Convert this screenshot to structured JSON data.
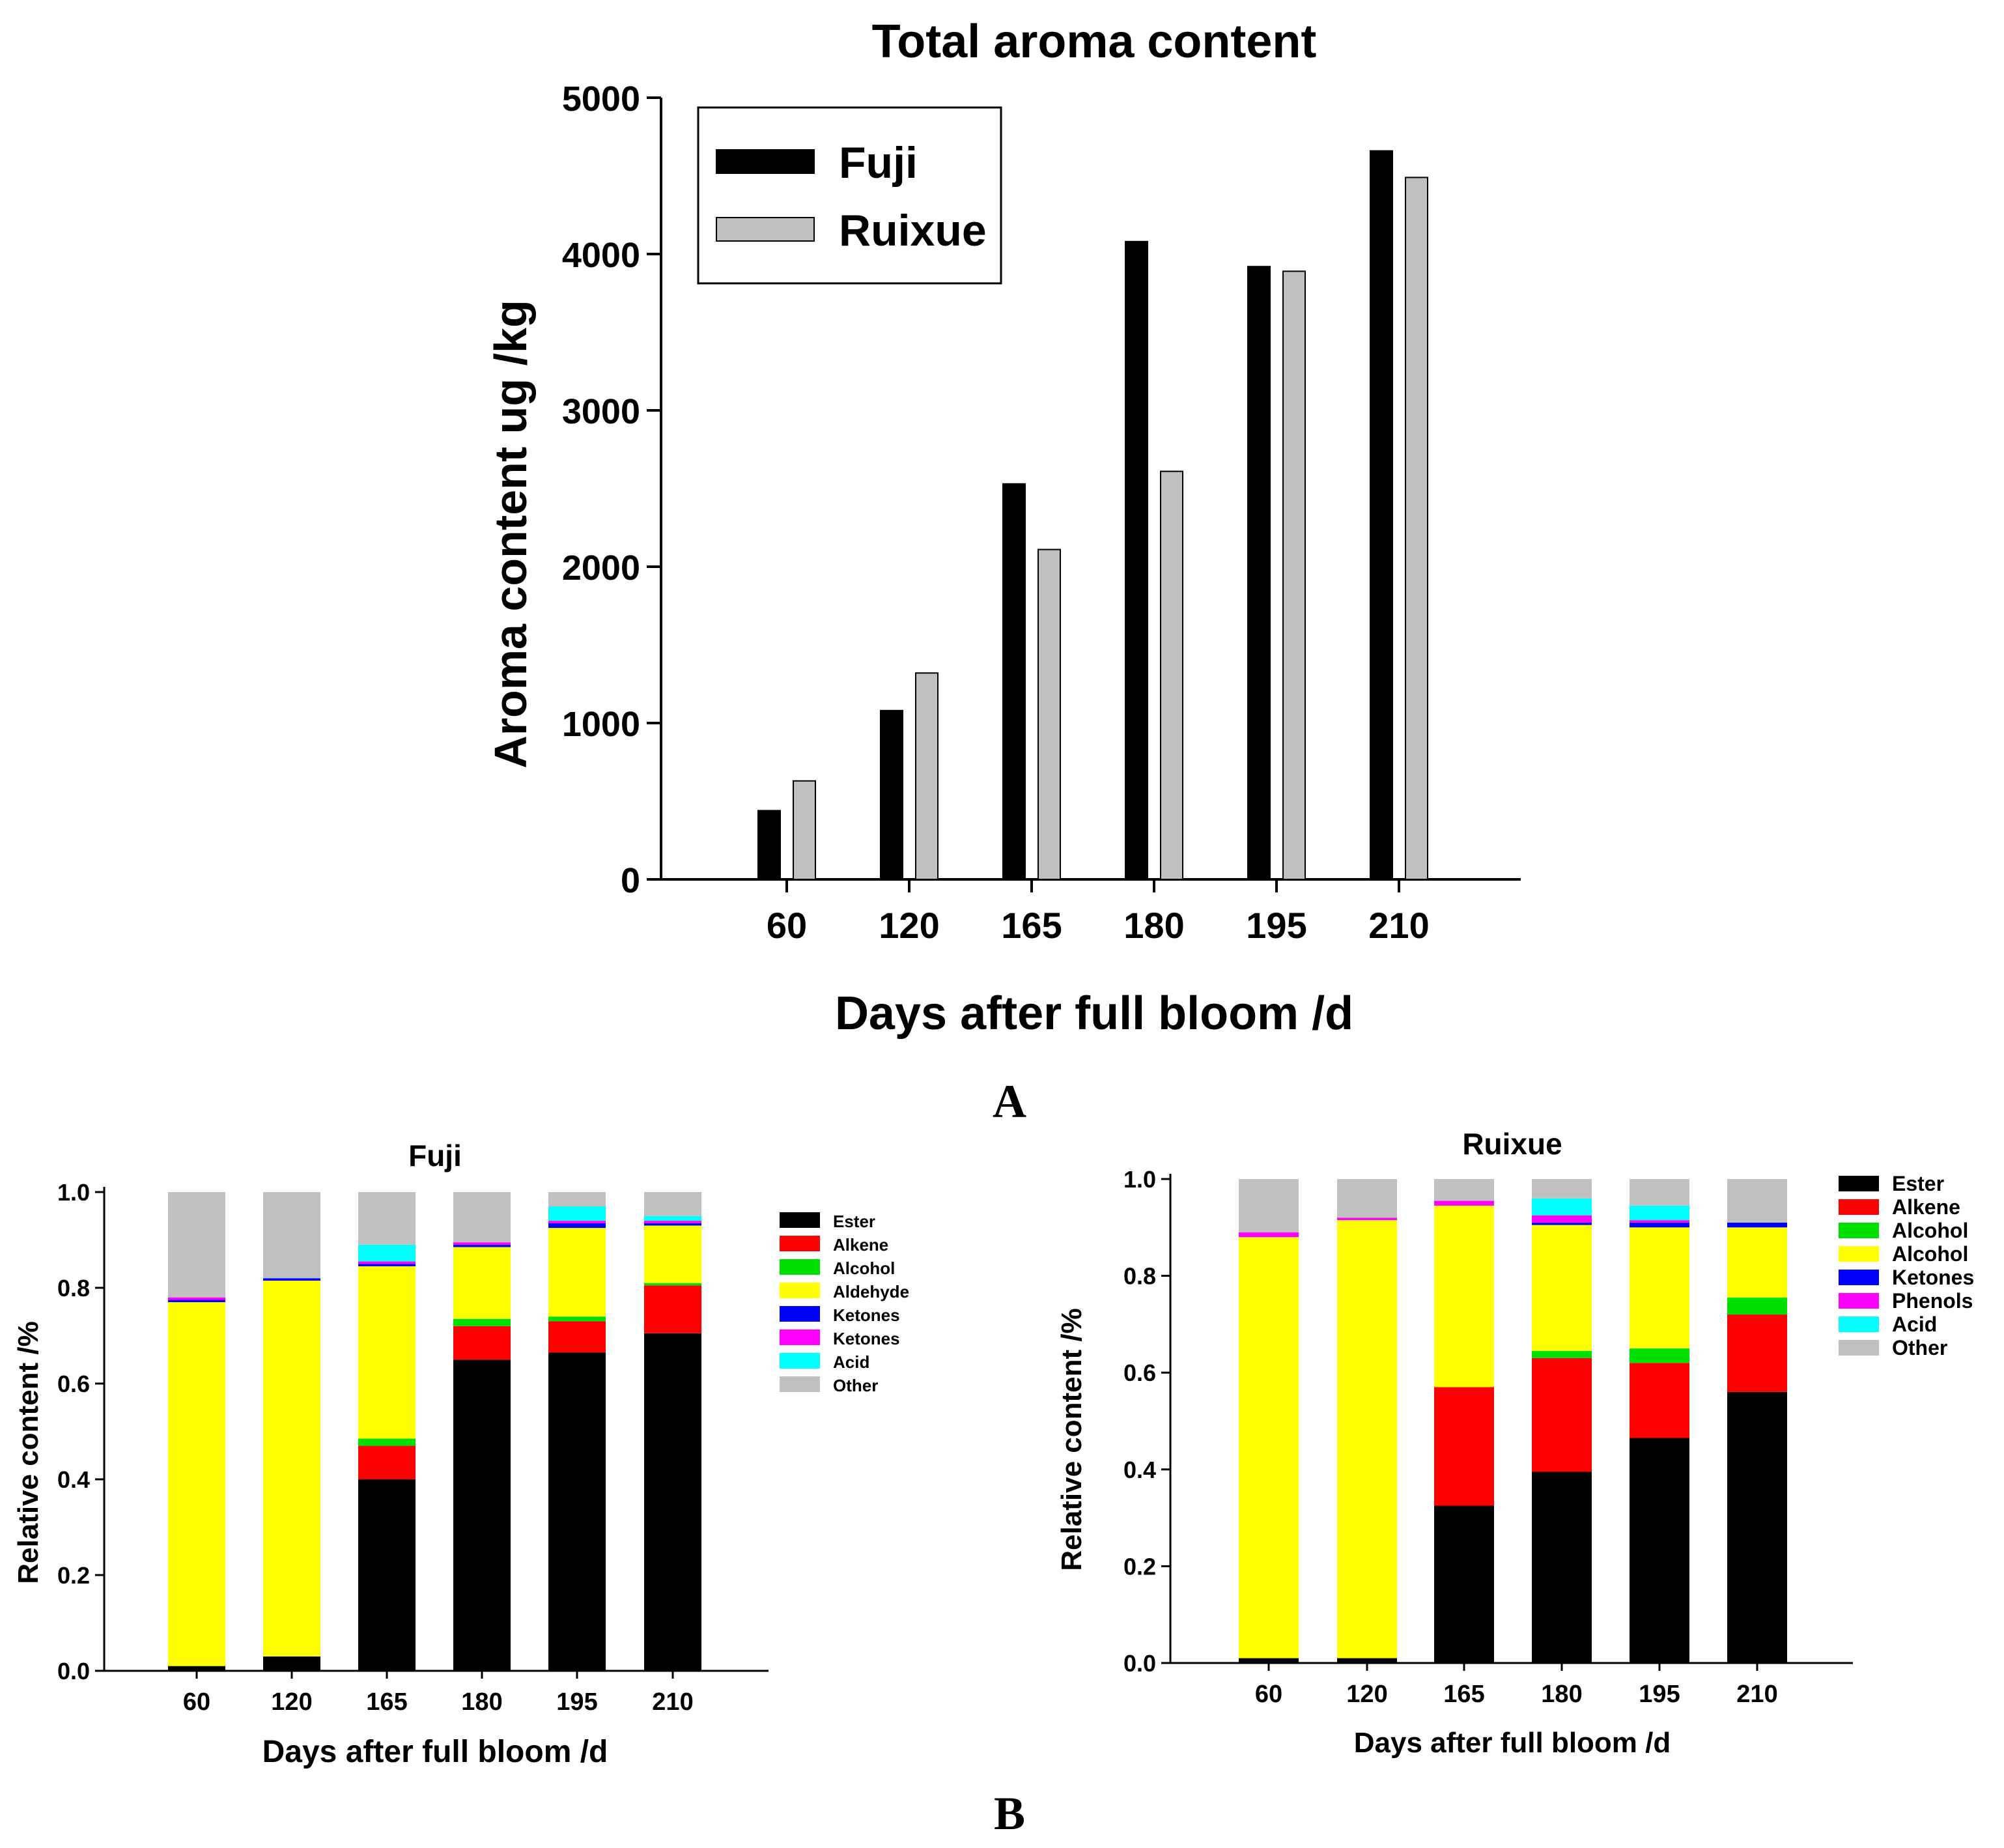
{
  "chart_data": [
    {
      "id": "A",
      "type": "bar",
      "title": "Total aroma content",
      "xlabel": "Days after full bloom /d",
      "ylabel": "Aroma content    ug /kg",
      "categories": [
        "60",
        "120",
        "165",
        "180",
        "195",
        "210"
      ],
      "series": [
        {
          "name": "Fuji",
          "color": "#000000",
          "values": [
            440,
            1080,
            2530,
            4080,
            3920,
            4660
          ]
        },
        {
          "name": "Ruixue",
          "color": "#c0c0c0",
          "values": [
            630,
            1320,
            2110,
            2610,
            3890,
            4490
          ]
        }
      ],
      "ylim": [
        0,
        5000
      ],
      "yticks": [
        "0",
        "1000",
        "2000",
        "3000",
        "4000",
        "5000"
      ],
      "legend_position": "top-left",
      "panel_label": "A"
    },
    {
      "id": "B-fuji",
      "type": "bar",
      "stacked": true,
      "title": "Fuji",
      "xlabel": "Days after full bloom /d",
      "ylabel": "Relative content  /%",
      "categories": [
        "60",
        "120",
        "165",
        "180",
        "195",
        "210"
      ],
      "ylim": [
        0,
        1.0
      ],
      "yticks": [
        "0.0",
        "0.2",
        "0.4",
        "0.6",
        "0.8",
        "1.0"
      ],
      "legend_position": "right",
      "series": [
        {
          "name": "Ester",
          "color": "#000000",
          "values": [
            0.01,
            0.03,
            0.4,
            0.65,
            0.665,
            0.705
          ]
        },
        {
          "name": "Alkene",
          "color": "#ff0000",
          "values": [
            0.0,
            0.0,
            0.07,
            0.07,
            0.065,
            0.1
          ]
        },
        {
          "name": "Alcohol",
          "color": "#00e000",
          "values": [
            0.0,
            0.0,
            0.015,
            0.015,
            0.01,
            0.005
          ]
        },
        {
          "name": "Aldehyde",
          "color": "#ffff00",
          "values": [
            0.76,
            0.785,
            0.36,
            0.15,
            0.185,
            0.12
          ]
        },
        {
          "name": "Ketones",
          "color": "#0000ff",
          "values": [
            0.005,
            0.005,
            0.005,
            0.005,
            0.01,
            0.005
          ]
        },
        {
          "name": "Ketones",
          "color": "#ff00ff",
          "values": [
            0.005,
            0.0,
            0.005,
            0.005,
            0.005,
            0.005
          ]
        },
        {
          "name": "Acid",
          "color": "#00ffff",
          "values": [
            0.0,
            0.0,
            0.035,
            0.0,
            0.03,
            0.01
          ]
        },
        {
          "name": "Other",
          "color": "#c0c0c0",
          "values": [
            0.22,
            0.18,
            0.11,
            0.105,
            0.03,
            0.05
          ]
        }
      ]
    },
    {
      "id": "B-ruixue",
      "type": "bar",
      "stacked": true,
      "title": "Ruixue",
      "xlabel": "Days after full bloom /d",
      "ylabel": "Relative content  /%",
      "categories": [
        "60",
        "120",
        "165",
        "180",
        "195",
        "210"
      ],
      "ylim": [
        0,
        1.0
      ],
      "yticks": [
        "0.0",
        "0.2",
        "0.4",
        "0.6",
        "0.8",
        "1.0"
      ],
      "legend_position": "right",
      "series": [
        {
          "name": "Ester",
          "color": "#000000",
          "values": [
            0.01,
            0.01,
            0.325,
            0.395,
            0.465,
            0.56
          ]
        },
        {
          "name": "Alkene",
          "color": "#ff0000",
          "values": [
            0.0,
            0.0,
            0.245,
            0.235,
            0.155,
            0.16
          ]
        },
        {
          "name": "Alcohol",
          "color": "#00e000",
          "values": [
            0.0,
            0.0,
            0.0,
            0.015,
            0.03,
            0.035
          ]
        },
        {
          "name": "Alcohol",
          "color": "#ffff00",
          "values": [
            0.87,
            0.905,
            0.375,
            0.26,
            0.25,
            0.145
          ]
        },
        {
          "name": "Ketones",
          "color": "#0000ff",
          "values": [
            0.0,
            0.0,
            0.0,
            0.005,
            0.01,
            0.01
          ]
        },
        {
          "name": "Phenols",
          "color": "#ff00ff",
          "values": [
            0.01,
            0.005,
            0.01,
            0.015,
            0.005,
            0.0
          ]
        },
        {
          "name": "Acid",
          "color": "#00ffff",
          "values": [
            0.0,
            0.0,
            0.0,
            0.035,
            0.03,
            0.0
          ]
        },
        {
          "name": "Other",
          "color": "#c0c0c0",
          "values": [
            0.11,
            0.08,
            0.045,
            0.04,
            0.055,
            0.09
          ]
        }
      ]
    }
  ],
  "panel_b_label": "B"
}
